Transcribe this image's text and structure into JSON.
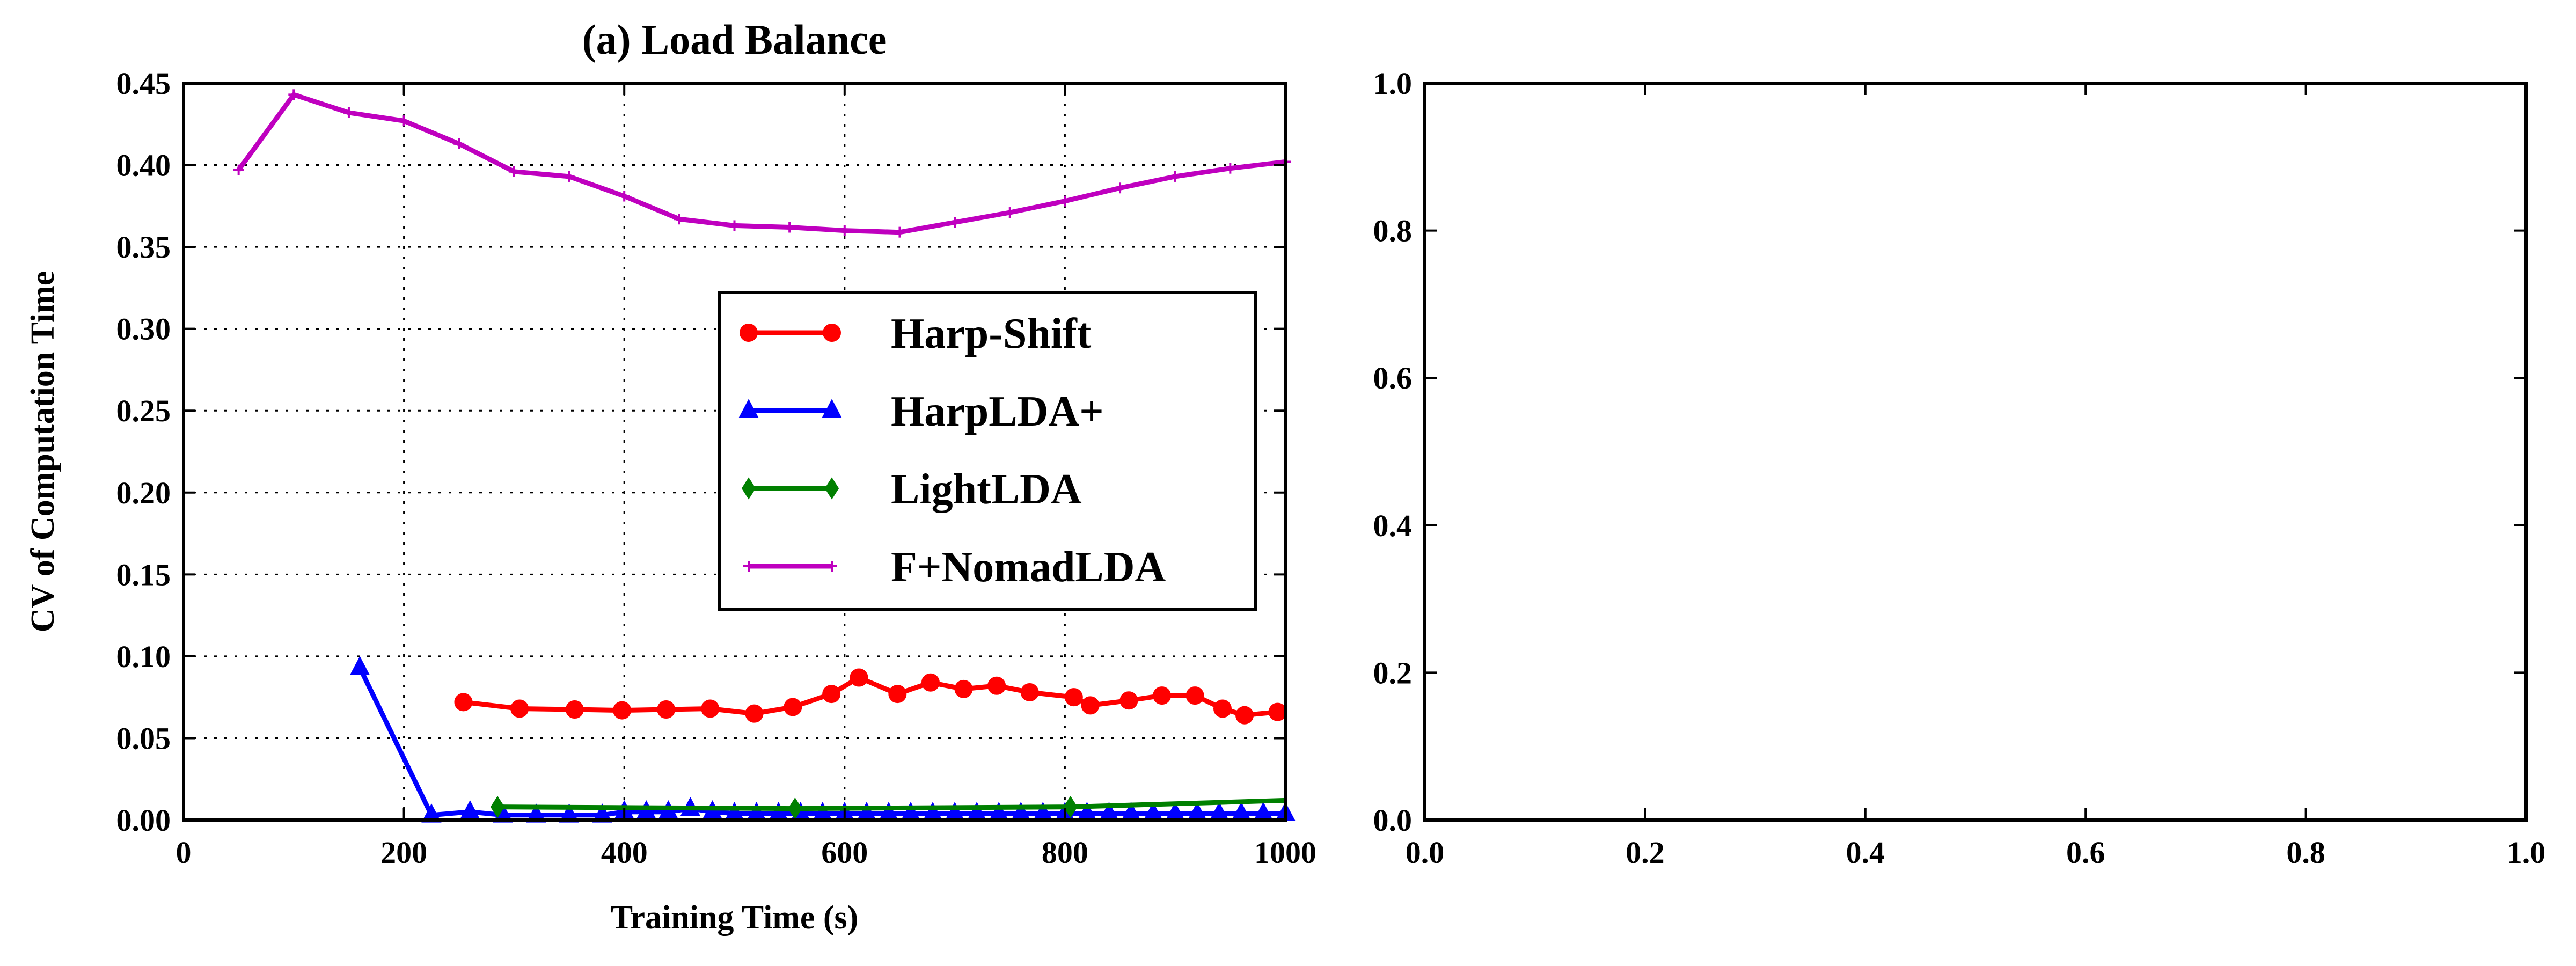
{
  "chart_data": [
    {
      "type": "line",
      "title": "(a) Load Balance",
      "xlabel": "Training Time (s)",
      "ylabel": "CV of Computation Time",
      "xlim": [
        0,
        1000
      ],
      "ylim": [
        0,
        0.45
      ],
      "xticks": [
        0,
        200,
        400,
        600,
        800,
        1000
      ],
      "yticks": [
        0.0,
        0.05,
        0.1,
        0.15,
        0.2,
        0.25,
        0.3,
        0.35,
        0.4,
        0.45
      ],
      "grid": true,
      "legend_position": "center-right",
      "series": [
        {
          "name": "Harp-Shift",
          "color": "#ff0000",
          "marker": "circle",
          "x": [
            254,
            305,
            355,
            398,
            438,
            478,
            518,
            553,
            588,
            613,
            648,
            678,
            708,
            738,
            768,
            808,
            823,
            858,
            888,
            918,
            943,
            963,
            993
          ],
          "y": [
            0.072,
            0.068,
            0.0675,
            0.067,
            0.0675,
            0.068,
            0.065,
            0.069,
            0.077,
            0.087,
            0.077,
            0.084,
            0.08,
            0.082,
            0.078,
            0.075,
            0.07,
            0.073,
            0.076,
            0.076,
            0.068,
            0.064,
            0.066
          ]
        },
        {
          "name": "HarpLDA+",
          "color": "#0000ff",
          "marker": "triangle",
          "x": [
            160,
            225,
            260,
            290,
            320,
            350,
            380,
            400,
            420,
            440,
            460,
            480,
            500,
            520,
            540,
            560,
            580,
            600,
            620,
            640,
            660,
            680,
            700,
            720,
            740,
            760,
            780,
            800,
            820,
            840,
            860,
            880,
            900,
            920,
            940,
            960,
            980,
            1000
          ],
          "y": [
            0.093,
            0.003,
            0.005,
            0.003,
            0.003,
            0.003,
            0.003,
            0.005,
            0.005,
            0.005,
            0.007,
            0.005,
            0.004,
            0.004,
            0.004,
            0.004,
            0.004,
            0.004,
            0.004,
            0.004,
            0.004,
            0.004,
            0.004,
            0.004,
            0.004,
            0.004,
            0.004,
            0.004,
            0.004,
            0.004,
            0.004,
            0.004,
            0.004,
            0.004,
            0.004,
            0.004,
            0.004,
            0.004
          ]
        },
        {
          "name": "LightLDA",
          "color": "#008000",
          "marker": "diamond",
          "x": [
            285,
            555,
            805,
            1000
          ],
          "y": [
            0.008,
            0.007,
            0.008,
            0.012
          ],
          "marker_x": [
            285,
            555,
            805
          ]
        },
        {
          "name": "F+NomadLDA",
          "color": "#bf00bf",
          "marker": "plus",
          "x": [
            50,
            100,
            150,
            200,
            250,
            300,
            350,
            400,
            450,
            500,
            550,
            600,
            650,
            700,
            750,
            800,
            850,
            900,
            950,
            1000
          ],
          "y": [
            0.397,
            0.443,
            0.432,
            0.427,
            0.413,
            0.396,
            0.393,
            0.381,
            0.367,
            0.363,
            0.362,
            0.36,
            0.359,
            0.365,
            0.371,
            0.378,
            0.386,
            0.393,
            0.398,
            0.402
          ]
        }
      ]
    },
    {
      "type": "line",
      "title": "",
      "xlabel": "",
      "ylabel": "",
      "xlim": [
        0,
        1
      ],
      "ylim": [
        0,
        1
      ],
      "xticks": [
        0.0,
        0.2,
        0.4,
        0.6,
        0.8,
        1.0
      ],
      "yticks": [
        0.0,
        0.2,
        0.4,
        0.6,
        0.8,
        1.0
      ],
      "grid": false,
      "series": []
    }
  ]
}
